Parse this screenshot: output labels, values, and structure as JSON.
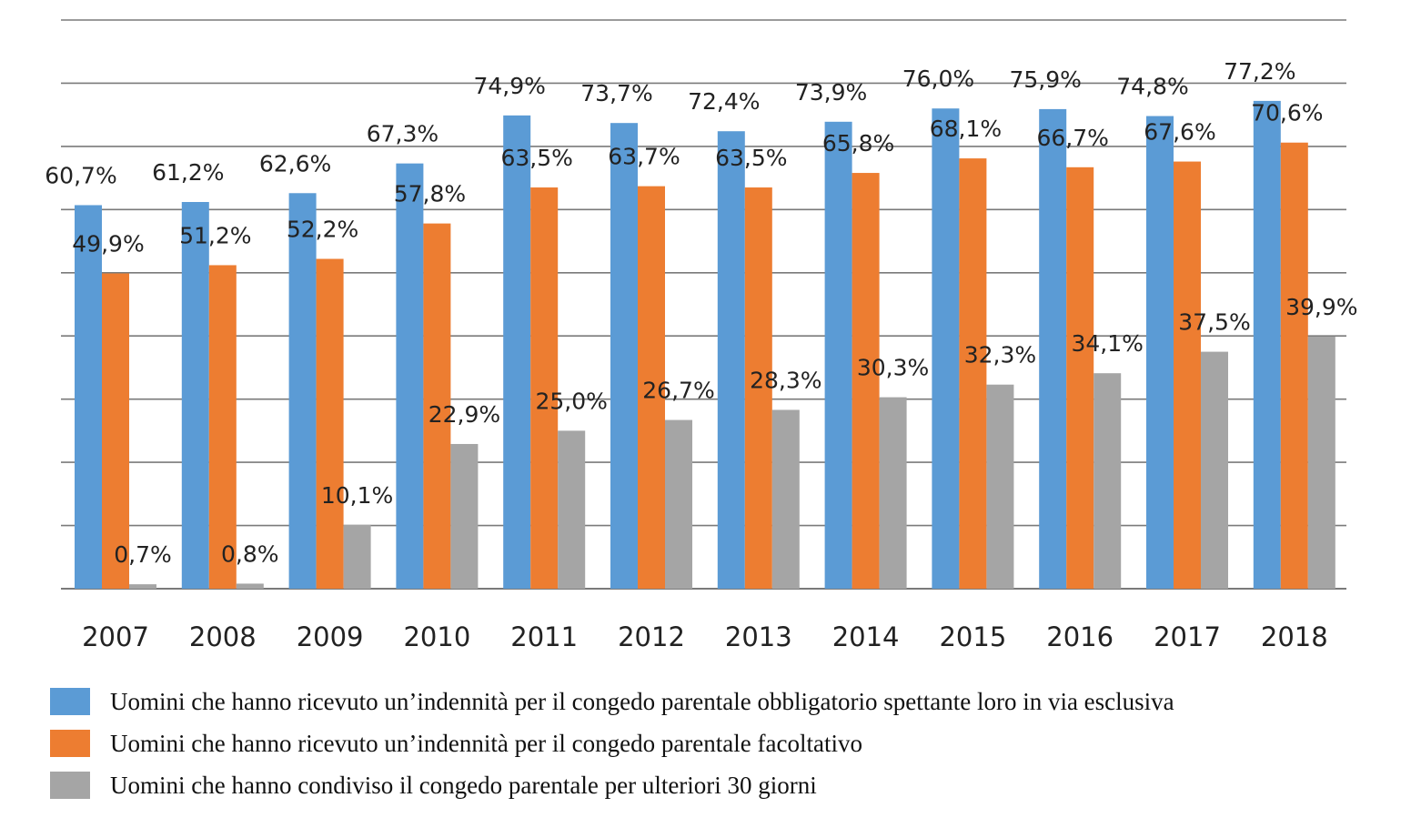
{
  "chart_data": {
    "type": "bar",
    "categories": [
      "2007",
      "2008",
      "2009",
      "2010",
      "2011",
      "2012",
      "2013",
      "2014",
      "2015",
      "2016",
      "2017",
      "2018"
    ],
    "series": [
      {
        "name": "Uomini che hanno ricevuto un’indennità per il congedo parentale obbligatorio spettante loro in via esclusiva",
        "color": "#5b9bd5",
        "values": [
          60.7,
          61.2,
          62.6,
          67.3,
          74.9,
          73.7,
          72.4,
          73.9,
          76.0,
          75.9,
          74.8,
          77.2
        ],
        "labels": [
          "60,7%",
          "61,2%",
          "62,6%",
          "67,3%",
          "74,9%",
          "73,7%",
          "72,4%",
          "73,9%",
          "76,0%",
          "75,9%",
          "74,8%",
          "77,2%"
        ]
      },
      {
        "name": "Uomini che hanno ricevuto un’indennità per il congedo parentale facoltativo",
        "color": "#ed7d31",
        "values": [
          49.9,
          51.2,
          52.2,
          57.8,
          63.5,
          63.7,
          63.5,
          65.8,
          68.1,
          66.7,
          67.6,
          70.6
        ],
        "labels": [
          "49,9%",
          "51,2%",
          "52,2%",
          "57,8%",
          "63,5%",
          "63,7%",
          "63,5%",
          "65,8%",
          "68,1%",
          "66,7%",
          "67,6%",
          "70,6%"
        ]
      },
      {
        "name": "Uomini che hanno condiviso il congedo parentale per ulteriori 30 giorni",
        "color": "#a5a5a5",
        "values": [
          0.7,
          0.8,
          10.1,
          22.9,
          25.0,
          26.7,
          28.3,
          30.3,
          32.3,
          34.1,
          37.5,
          39.9
        ],
        "labels": [
          "0,7%",
          "0,8%",
          "10,1%",
          "22,9%",
          "25,0%",
          "26,7%",
          "28,3%",
          "30,3%",
          "32,3%",
          "34,1%",
          "37,5%",
          "39,9%"
        ]
      }
    ],
    "ylim": [
      0,
      90
    ],
    "grid": true,
    "legend_position": "bottom"
  }
}
